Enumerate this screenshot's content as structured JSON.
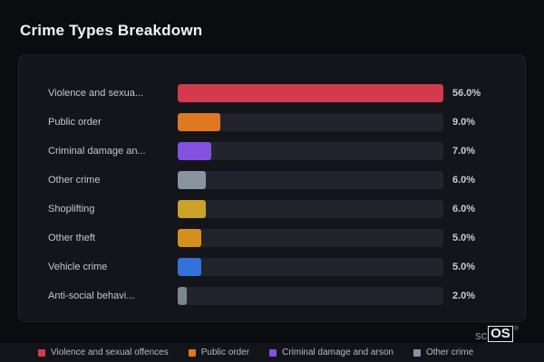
{
  "page": {
    "title": "Crime Types Breakdown"
  },
  "brand": {
    "light": "sc",
    "boxed": "OS",
    "reg": "®"
  },
  "chart_data": {
    "type": "bar",
    "orientation": "horizontal",
    "title": "Crime Types Breakdown",
    "xlabel": "",
    "ylabel": "",
    "xlim": [
      0,
      56
    ],
    "grid": false,
    "legend_position": "bottom",
    "categories": [
      "Violence and sexua...",
      "Public order",
      "Criminal damage an...",
      "Other crime",
      "Shoplifting",
      "Other theft",
      "Vehicle crime",
      "Anti-social behavi..."
    ],
    "values": [
      56.0,
      9.0,
      7.0,
      6.0,
      6.0,
      5.0,
      5.0,
      2.0
    ],
    "value_labels": [
      "56.0%",
      "9.0%",
      "7.0%",
      "6.0%",
      "6.0%",
      "5.0%",
      "5.0%",
      "2.0%"
    ],
    "bar_colors": [
      "#d23b4e",
      "#de7921",
      "#8352e0",
      "#8a93a2",
      "#c9a227",
      "#d4901d",
      "#3272d9",
      "#7d8590"
    ],
    "max_value": 56.0
  },
  "legend": {
    "items": [
      {
        "label": "Violence and sexual offences",
        "color": "#d23b4e"
      },
      {
        "label": "Public order",
        "color": "#de7921"
      },
      {
        "label": "Criminal damage and arson",
        "color": "#8352e0"
      },
      {
        "label": "Other crime",
        "color": "#8a93a2"
      }
    ]
  }
}
